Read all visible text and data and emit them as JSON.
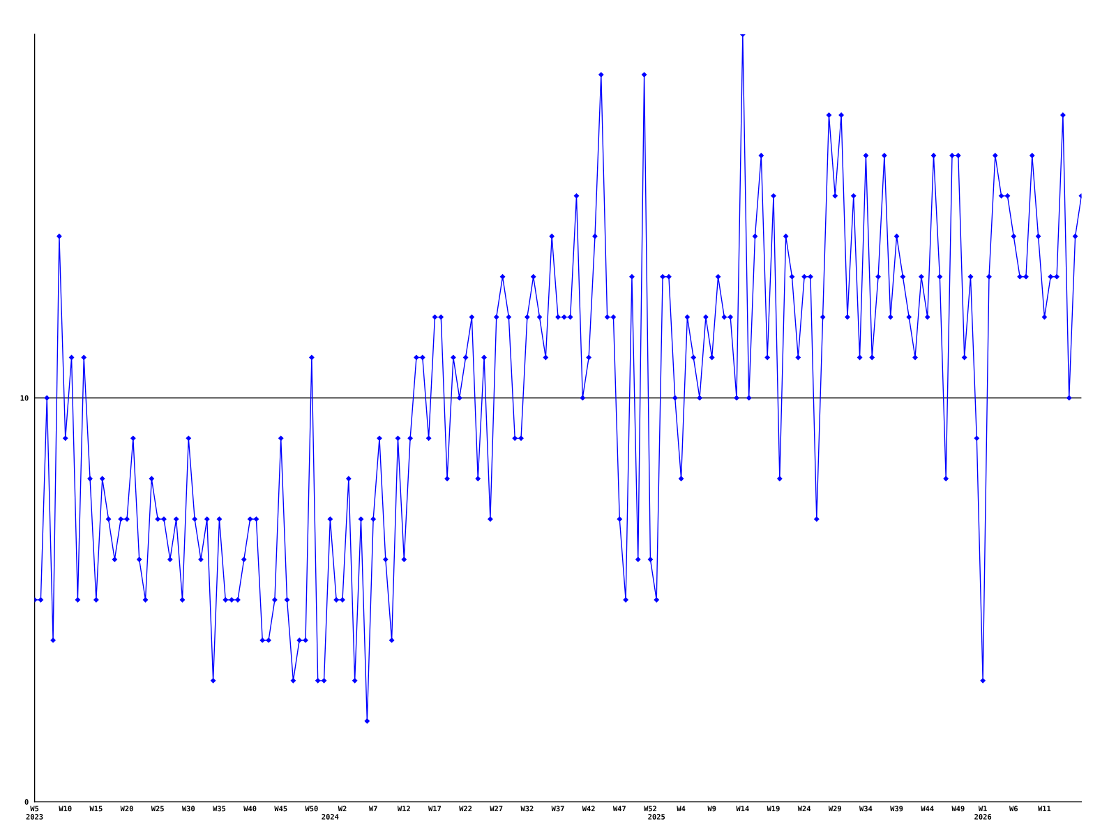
{
  "chart_data": {
    "type": "line",
    "categories": [
      "W5\n2023",
      null,
      null,
      null,
      null,
      "W10",
      null,
      null,
      null,
      null,
      "W15",
      null,
      null,
      null,
      null,
      "W20",
      null,
      null,
      null,
      null,
      "W25",
      null,
      null,
      null,
      null,
      "W30",
      null,
      null,
      null,
      null,
      "W35",
      null,
      null,
      null,
      null,
      "W40",
      null,
      null,
      null,
      null,
      "W45",
      null,
      null,
      null,
      null,
      "W50",
      null,
      null,
      "\n2024",
      null,
      "W2",
      null,
      null,
      null,
      null,
      "W7",
      null,
      null,
      null,
      null,
      "W12",
      null,
      null,
      null,
      null,
      "W17",
      null,
      null,
      null,
      null,
      "W22",
      null,
      null,
      null,
      null,
      "W27",
      null,
      null,
      null,
      null,
      "W32",
      null,
      null,
      null,
      null,
      "W37",
      null,
      null,
      null,
      null,
      "W42",
      null,
      null,
      null,
      null,
      "W47",
      null,
      null,
      null,
      null,
      "W52",
      "\n2025",
      null,
      null,
      null,
      "W4",
      null,
      null,
      null,
      null,
      "W9",
      null,
      null,
      null,
      null,
      "W14",
      null,
      null,
      null,
      null,
      "W19",
      null,
      null,
      null,
      null,
      "W24",
      null,
      null,
      null,
      null,
      "W29",
      null,
      null,
      null,
      null,
      "W34",
      null,
      null,
      null,
      null,
      "W39",
      null,
      null,
      null,
      null,
      "W44",
      null,
      null,
      null,
      null,
      "W49",
      null,
      null,
      null,
      "W1\n2026",
      null,
      null,
      null,
      null,
      "W6",
      null,
      null,
      null,
      null,
      "W11",
      null,
      null,
      null,
      null,
      null,
      null
    ],
    "series": [
      {
        "color": "#0000ff",
        "values": [
          5,
          5,
          10,
          4,
          14,
          9,
          11,
          5,
          11,
          8,
          5,
          8,
          7,
          6,
          7,
          7,
          9,
          6,
          5,
          8,
          7,
          7,
          6,
          7,
          5,
          9,
          7,
          6,
          7,
          3,
          7,
          5,
          5,
          5,
          6,
          7,
          7,
          4,
          4,
          5,
          9,
          5,
          3,
          4,
          4,
          11,
          3,
          3,
          7,
          5,
          5,
          8,
          3,
          7,
          2,
          7,
          9,
          6,
          4,
          9,
          6,
          9,
          11,
          11,
          9,
          12,
          12,
          8,
          11,
          10,
          11,
          12,
          8,
          11,
          7,
          12,
          13,
          12,
          9,
          9,
          12,
          13,
          12,
          11,
          14,
          12,
          12,
          12,
          15,
          10,
          11,
          14,
          18,
          12,
          12,
          7,
          5,
          13,
          6,
          18,
          6,
          5,
          13,
          13,
          10,
          8,
          12,
          11,
          10,
          12,
          11,
          13,
          12,
          12,
          10,
          19,
          10,
          14,
          16,
          11,
          15,
          8,
          14,
          13,
          11,
          13,
          13,
          7,
          12,
          17,
          15,
          17,
          12,
          15,
          11,
          16,
          11,
          13,
          16,
          12,
          14,
          13,
          12,
          11,
          13,
          12,
          16,
          13,
          8,
          16,
          16,
          11,
          13,
          9,
          3,
          13,
          16,
          15,
          15,
          14,
          13,
          13,
          16,
          14,
          12,
          13,
          13,
          17,
          10,
          14,
          15
        ]
      }
    ],
    "ylim": [
      0,
      19
    ],
    "yticks": [
      0,
      10
    ],
    "ref_lines": [
      {
        "axis": "y",
        "value": 10,
        "color": "#000000"
      }
    ],
    "marker": "diamond",
    "line_style": "solid",
    "grid": false
  }
}
